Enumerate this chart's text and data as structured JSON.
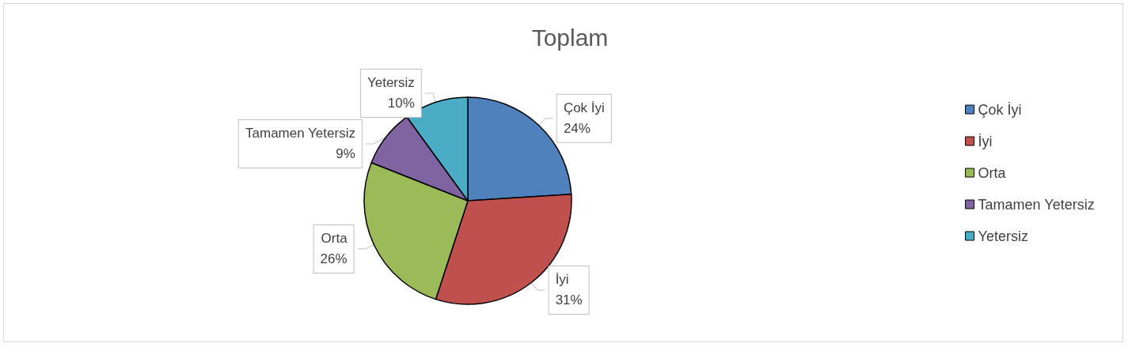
{
  "chart_data": {
    "type": "pie",
    "title": "Toplam",
    "categories": [
      "Çok İyi",
      "İyi",
      "Orta",
      "Tamamen Yetersiz",
      "Yetersiz"
    ],
    "values": [
      24,
      31,
      26,
      9,
      10
    ],
    "value_labels": [
      "24%",
      "31%",
      "26%",
      "9%",
      "10%"
    ],
    "colors": [
      "#4f81bd",
      "#c0504d",
      "#9bbb59",
      "#8064a2",
      "#4bacc6"
    ],
    "legend": "right"
  }
}
